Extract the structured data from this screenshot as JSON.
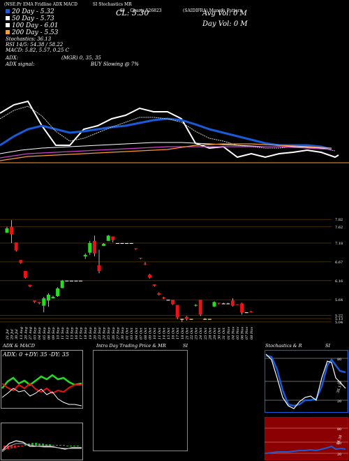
{
  "header": {
    "link_items": [
      "(NSE:Pr",
      "EMA",
      "Fridline",
      "ADX",
      "MACD",
      "SI",
      "Stochastics",
      "MR",
      "SI",
      "Charts",
      "526823"
    ],
    "right_title": "(SAIDIFRA) Munafa Pattern",
    "close_label": "CL: 5.30"
  },
  "overlay": {
    "ema_lines": [
      "20 Day - 5.32",
      "50 Day - 5.73",
      "100 Day - 6.01",
      "200 Day - 5.53"
    ],
    "stoch": "Stochastics: 36.13",
    "rsi": "RSI 14/5: 54.38 / 58.22",
    "macd": "MACD: 5.82, 5.57, 0.25 C",
    "adx": "ADX: ",
    "adx_signal": "ADX signal:",
    "adx_values": "(MGR) 0, 35, 35",
    "buy": "BUY Slowing @ 7%",
    "avg_vol": "Avg Vol: 0 M",
    "day_vol": "Day Vol: 0 M"
  },
  "colors": {
    "blue": "#1a5bd9",
    "bg": "#000000",
    "grid": "#5a3a00",
    "up": "#22dd22",
    "down": "#ee1111",
    "orange": "#ff9933",
    "magenta": "#cc44cc",
    "maroon": "#8b0000"
  },
  "price_axis": [
    "7.82",
    "7.62",
    "7.18",
    "6.67",
    "6.16",
    "5.64",
    "5.13",
    "5.04",
    "5.22"
  ],
  "dates": [
    "21 Jul",
    "29 Jul",
    "30 Jul",
    "13 Aug",
    "20 Aug",
    "27 Aug",
    "03 Sep",
    "04 Sep",
    "05 Sep",
    "06 Sep",
    "09 Sep",
    "10 Sep",
    "11 Sep",
    "12 Sep",
    "13 Sep",
    "16 Sep",
    "17 Sep",
    "18 Sep",
    "19 Sep",
    "20 Sep",
    "23 Sep",
    "24 Sep",
    "25 Sep",
    "26 Sep",
    "27 Sep",
    "30 Sep",
    "01 Oct",
    "03 Oct",
    "04 Oct",
    "07 Oct",
    "08 Oct",
    "09 Oct",
    "10 Oct",
    "11 Oct",
    "14 Oct",
    "15 Oct",
    "16 Oct",
    "17 Oct",
    "18 Oct",
    "21 Oct",
    "22 Oct",
    "23 Oct",
    "24 Oct",
    "25 Oct",
    "28 Oct",
    "29 Oct",
    "30 Oct",
    "31 Oct",
    "01 Nov",
    "04 Nov",
    "05 Nov",
    "06 Nov",
    "07 Nov",
    "08 Nov"
  ],
  "panels": {
    "adx_title": "ADX & MACD",
    "adx_readout": "ADX: 0  +DY: 35 -DY: 35",
    "intra_title": "Intra  Day Trading Price  & MR",
    "intra_si": "SI",
    "stoch_title": "Stochastics & R",
    "stoch_si": "SI",
    "stoch_axis": [
      "80",
      "50",
      "20"
    ],
    "stoch_value": "36.13",
    "rsi_axis": [
      "80",
      "50",
      "20"
    ],
    "rsi_value": "54.38"
  },
  "chart_data": {
    "type": "candlestick",
    "candles": [
      {
        "o": 7.46,
        "h": 7.62,
        "l": 7.46,
        "c": 7.58
      },
      {
        "o": 7.62,
        "h": 7.8,
        "l": 7.18,
        "c": 7.42
      },
      {
        "o": 7.2,
        "h": 7.2,
        "l": 6.95,
        "c": 6.98
      },
      {
        "o": 6.72,
        "h": 6.72,
        "l": 6.62,
        "c": 6.64
      },
      {
        "o": 6.42,
        "h": 6.42,
        "l": 6.22,
        "c": 6.24
      },
      {
        "o": 6.05,
        "h": 6.05,
        "l": 5.98,
        "c": 6.0
      },
      {
        "o": 5.62,
        "h": 5.62,
        "l": 5.56,
        "c": 5.58
      },
      {
        "o": 5.58,
        "h": 5.58,
        "l": 5.52,
        "c": 5.55
      },
      {
        "o": 5.48,
        "h": 5.72,
        "l": 5.3,
        "c": 5.68
      },
      {
        "o": 5.62,
        "h": 5.82,
        "l": 5.45,
        "c": 5.78
      },
      {
        "o": 5.68,
        "h": 5.75,
        "l": 5.68,
        "c": 5.72
      },
      {
        "o": 5.74,
        "h": 5.98,
        "l": 5.72,
        "c": 5.95
      },
      {
        "o": 5.96,
        "h": 6.18,
        "l": 5.95,
        "c": 6.16
      },
      {
        "o": 6.16,
        "h": 6.16,
        "l": 6.16,
        "c": 6.16
      },
      {
        "o": 6.16,
        "h": 6.16,
        "l": 6.16,
        "c": 6.16
      },
      {
        "o": 6.16,
        "h": 6.16,
        "l": 6.16,
        "c": 6.16
      },
      {
        "o": 6.16,
        "h": 6.16,
        "l": 6.16,
        "c": 6.16
      },
      {
        "o": 6.82,
        "h": 6.9,
        "l": 6.75,
        "c": 6.86
      },
      {
        "o": 6.92,
        "h": 7.24,
        "l": 6.86,
        "c": 7.18
      },
      {
        "o": 7.24,
        "h": 7.38,
        "l": 6.82,
        "c": 6.9
      },
      {
        "o": 6.58,
        "h": 7.0,
        "l": 6.36,
        "c": 6.42
      },
      {
        "o": 7.1,
        "h": 7.18,
        "l": 7.1,
        "c": 7.16
      },
      {
        "o": 7.24,
        "h": 7.4,
        "l": 7.24,
        "c": 7.38
      },
      {
        "o": 7.36,
        "h": 7.36,
        "l": 7.2,
        "c": 7.26
      },
      {
        "o": 7.18,
        "h": 7.18,
        "l": 7.18,
        "c": 7.18
      },
      {
        "o": 7.18,
        "h": 7.18,
        "l": 7.18,
        "c": 7.18
      },
      {
        "o": 7.18,
        "h": 7.18,
        "l": 7.18,
        "c": 7.18
      },
      {
        "o": 7.18,
        "h": 7.18,
        "l": 7.18,
        "c": 7.18
      },
      {
        "o": 7.04,
        "h": 7.04,
        "l": 7.0,
        "c": 7.02
      },
      {
        "o": 6.78,
        "h": 6.78,
        "l": 6.74,
        "c": 6.76
      },
      {
        "o": 6.62,
        "h": 6.66,
        "l": 6.58,
        "c": 6.6
      },
      {
        "o": 6.32,
        "h": 6.34,
        "l": 6.22,
        "c": 6.24
      },
      {
        "o": 6.06,
        "h": 6.06,
        "l": 6.0,
        "c": 6.02
      },
      {
        "o": 5.82,
        "h": 5.84,
        "l": 5.76,
        "c": 5.78
      },
      {
        "o": 5.7,
        "h": 5.72,
        "l": 5.66,
        "c": 5.68
      },
      {
        "o": 5.64,
        "h": 5.64,
        "l": 5.62,
        "c": 5.63
      },
      {
        "o": 5.64,
        "h": 5.64,
        "l": 5.5,
        "c": 5.52
      },
      {
        "o": 5.5,
        "h": 5.5,
        "l": 5.12,
        "c": 5.16
      },
      {
        "o": 5.12,
        "h": 5.12,
        "l": 5.04,
        "c": 5.12
      },
      {
        "o": 5.18,
        "h": 5.2,
        "l": 5.08,
        "c": 5.12
      },
      {
        "o": 5.12,
        "h": 5.12,
        "l": 5.12,
        "c": 5.12
      },
      {
        "o": 5.48,
        "h": 5.52,
        "l": 5.46,
        "c": 5.5
      },
      {
        "o": 5.64,
        "h": 5.64,
        "l": 5.2,
        "c": 5.24
      },
      {
        "o": 5.12,
        "h": 5.14,
        "l": 5.1,
        "c": 5.12
      },
      {
        "o": 5.12,
        "h": 5.12,
        "l": 5.12,
        "c": 5.12
      },
      {
        "o": 5.46,
        "h": 5.6,
        "l": 5.44,
        "c": 5.58
      },
      {
        "o": 5.56,
        "h": 5.56,
        "l": 5.52,
        "c": 5.54
      },
      {
        "o": 5.54,
        "h": 5.56,
        "l": 5.52,
        "c": 5.54
      },
      {
        "o": 5.54,
        "h": 5.56,
        "l": 5.52,
        "c": 5.54
      },
      {
        "o": 5.62,
        "h": 5.68,
        "l": 5.46,
        "c": 5.48
      },
      {
        "o": 5.52,
        "h": 5.52,
        "l": 5.5,
        "c": 5.5
      },
      {
        "o": 5.54,
        "h": 5.56,
        "l": 5.24,
        "c": 5.3
      },
      {
        "o": 5.3,
        "h": 5.3,
        "l": 5.28,
        "c": 5.3
      },
      {
        "o": 5.32,
        "h": 5.34,
        "l": 5.3,
        "c": 5.3
      }
    ],
    "price_range": [
      5.0,
      7.9
    ]
  }
}
